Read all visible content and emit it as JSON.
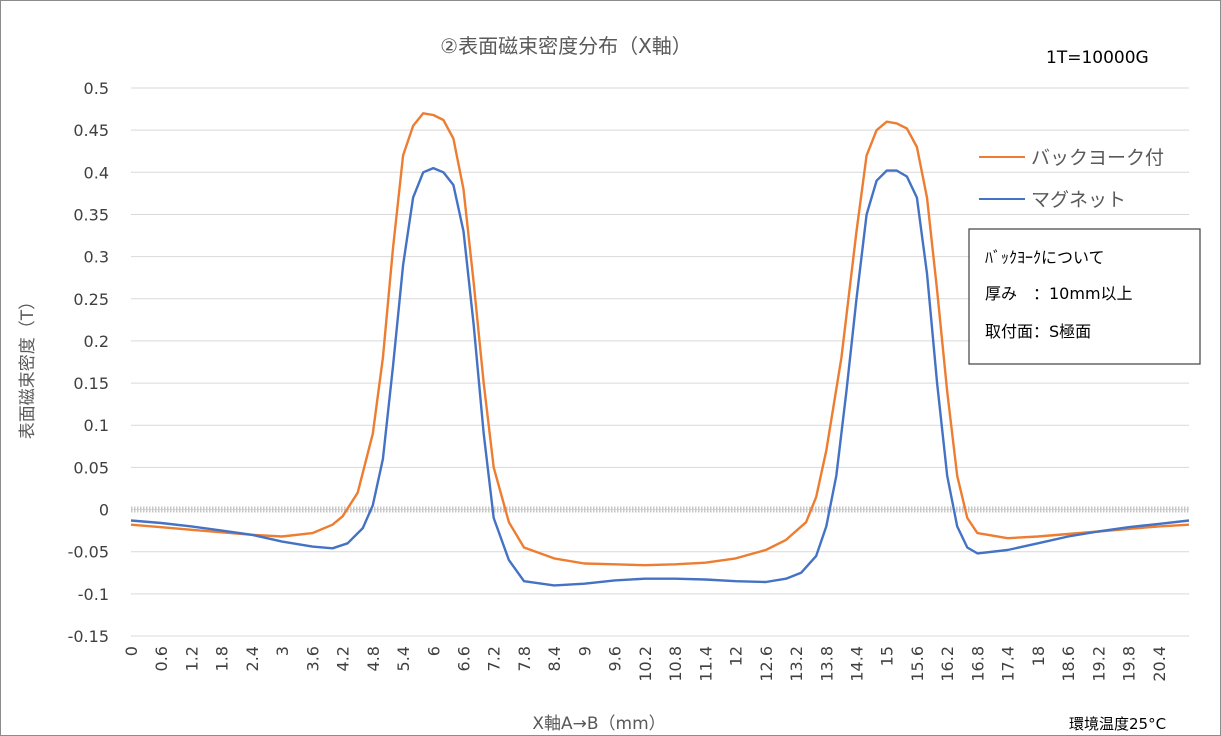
{
  "chart_data": {
    "type": "line",
    "title": "②表面磁束密度分布（X軸）",
    "unit_note": "1T=10000G",
    "xlabel": "X軸A→B（mm）",
    "ylabel": "表面磁束密度（T）",
    "footer_note": "環境温度25°C",
    "ylim": [
      -0.15,
      0.5
    ],
    "y_ticks": [
      "0.5",
      "0.45",
      "0.4",
      "0.35",
      "0.3",
      "0.25",
      "0.2",
      "0.15",
      "0.1",
      "0.05",
      "0",
      "-0.05",
      "-0.1",
      "-0.15"
    ],
    "x_range_mm": [
      0,
      21.0
    ],
    "x_ticks": [
      "0",
      "0.6",
      "1.2",
      "1.8",
      "2.4",
      "3",
      "3.6",
      "4.2",
      "4.8",
      "5.4",
      "6",
      "6.6",
      "7.2",
      "7.8",
      "8.4",
      "9",
      "9.6",
      "10.2",
      "10.8",
      "11.4",
      "12",
      "12.6",
      "13.2",
      "13.8",
      "14.4",
      "15",
      "15.6",
      "16.2",
      "16.8",
      "17.4",
      "18",
      "18.6",
      "19.2",
      "19.8",
      "20.4"
    ],
    "legend_position": "right",
    "grid": true,
    "series": [
      {
        "name": "バックヨーク付",
        "color": "#ED7D31",
        "x": [
          0,
          0.6,
          1.2,
          1.8,
          2.4,
          3.0,
          3.6,
          4.0,
          4.2,
          4.5,
          4.8,
          5.0,
          5.2,
          5.4,
          5.6,
          5.8,
          6.0,
          6.2,
          6.4,
          6.6,
          6.8,
          7.0,
          7.2,
          7.5,
          7.8,
          8.4,
          9.0,
          9.6,
          10.2,
          10.8,
          11.4,
          12.0,
          12.6,
          13.0,
          13.4,
          13.6,
          13.8,
          14.1,
          14.4,
          14.6,
          14.8,
          15.0,
          15.2,
          15.4,
          15.6,
          15.8,
          16.0,
          16.2,
          16.4,
          16.6,
          16.8,
          17.4,
          18.0,
          18.6,
          19.2,
          19.8,
          20.4,
          21.0
        ],
        "y": [
          -0.018,
          -0.021,
          -0.024,
          -0.027,
          -0.03,
          -0.032,
          -0.028,
          -0.018,
          -0.008,
          0.02,
          0.09,
          0.18,
          0.31,
          0.42,
          0.455,
          0.47,
          0.468,
          0.462,
          0.44,
          0.38,
          0.27,
          0.15,
          0.05,
          -0.015,
          -0.045,
          -0.058,
          -0.064,
          -0.065,
          -0.066,
          -0.065,
          -0.063,
          -0.058,
          -0.048,
          -0.036,
          -0.015,
          0.015,
          0.07,
          0.18,
          0.33,
          0.42,
          0.45,
          0.46,
          0.458,
          0.452,
          0.43,
          0.37,
          0.26,
          0.14,
          0.04,
          -0.01,
          -0.028,
          -0.034,
          -0.032,
          -0.029,
          -0.026,
          -0.023,
          -0.02,
          -0.018
        ]
      },
      {
        "name": "マグネット",
        "color": "#4472C4",
        "x": [
          0,
          0.6,
          1.2,
          1.8,
          2.4,
          3.0,
          3.6,
          4.0,
          4.3,
          4.6,
          4.8,
          5.0,
          5.2,
          5.4,
          5.6,
          5.8,
          6.0,
          6.2,
          6.4,
          6.6,
          6.8,
          7.0,
          7.2,
          7.5,
          7.8,
          8.4,
          9.0,
          9.6,
          10.2,
          10.8,
          11.4,
          12.0,
          12.6,
          13.0,
          13.3,
          13.6,
          13.8,
          14.0,
          14.2,
          14.4,
          14.6,
          14.8,
          15.0,
          15.2,
          15.4,
          15.6,
          15.8,
          16.0,
          16.2,
          16.4,
          16.6,
          16.8,
          17.4,
          18.0,
          18.6,
          19.2,
          19.8,
          20.4,
          21.0
        ],
        "y": [
          -0.013,
          -0.016,
          -0.02,
          -0.025,
          -0.03,
          -0.038,
          -0.044,
          -0.046,
          -0.04,
          -0.022,
          0.005,
          0.06,
          0.17,
          0.29,
          0.37,
          0.4,
          0.405,
          0.4,
          0.385,
          0.33,
          0.22,
          0.09,
          -0.01,
          -0.06,
          -0.085,
          -0.09,
          -0.088,
          -0.084,
          -0.082,
          -0.082,
          -0.083,
          -0.085,
          -0.086,
          -0.082,
          -0.075,
          -0.055,
          -0.02,
          0.04,
          0.14,
          0.25,
          0.35,
          0.39,
          0.402,
          0.402,
          0.395,
          0.37,
          0.28,
          0.15,
          0.04,
          -0.02,
          -0.045,
          -0.052,
          -0.048,
          -0.04,
          -0.032,
          -0.026,
          -0.021,
          -0.017,
          -0.013
        ]
      }
    ]
  },
  "info_box": {
    "heading": "ﾊﾞｯｸﾖｰｸについて",
    "line1": "厚み　：10mm以上",
    "line2": "取付面：S極面"
  }
}
